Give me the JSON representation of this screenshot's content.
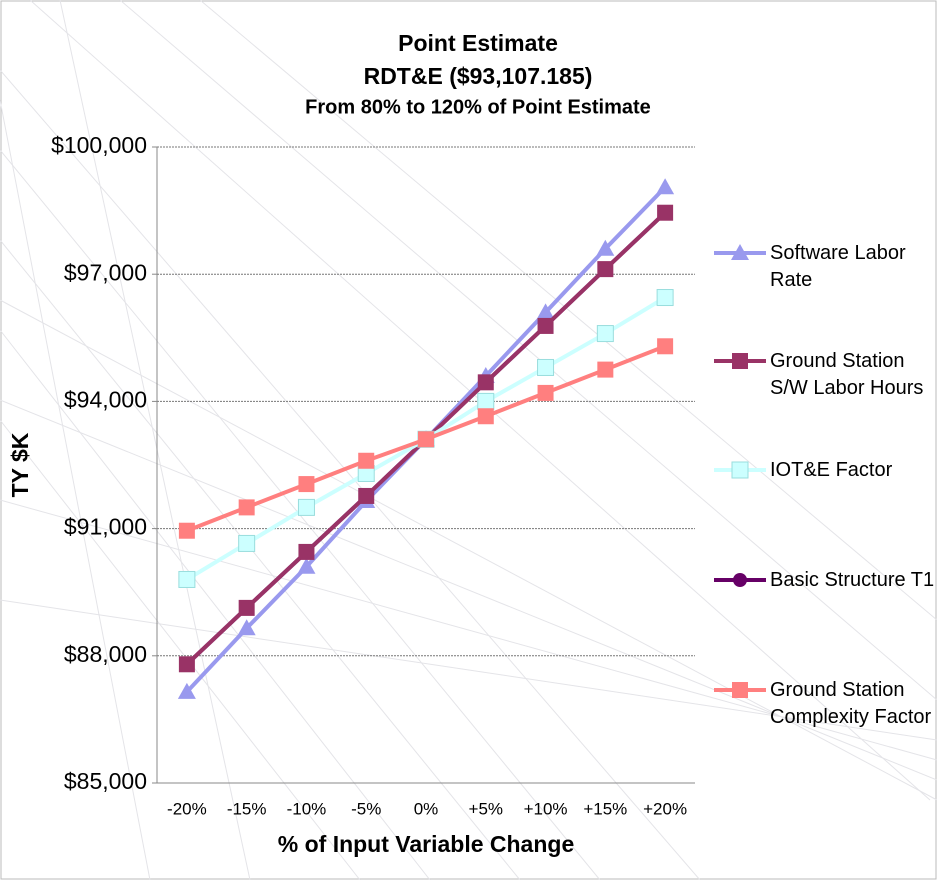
{
  "chart_data": {
    "type": "line",
    "title": "Point Estimate",
    "subtitle": "RDT&E ($93,107.185)",
    "subtitle2": "From 80% to 120% of Point Estimate",
    "y_label": "TY $K",
    "x_label": "% of Input Variable Change",
    "categories": [
      "-20%",
      "-15%",
      "-10%",
      "-5%",
      "0%",
      "+5%",
      "+10%",
      "+15%",
      "+20%"
    ],
    "ylim": [
      85000,
      100000
    ],
    "yticks": [
      {
        "value": 85000,
        "label": "$85,000"
      },
      {
        "value": 88000,
        "label": "$88,000"
      },
      {
        "value": 91000,
        "label": "$91,000"
      },
      {
        "value": 94000,
        "label": "$94,000"
      },
      {
        "value": 97000,
        "label": "$97,000"
      },
      {
        "value": 100000,
        "label": "$100,000"
      }
    ],
    "grid": true,
    "legend": "right",
    "series": [
      {
        "name": "Software Labor Rate",
        "color": "#9999ee",
        "marker": "triangle",
        "values": [
          87150,
          88650,
          90100,
          91650,
          93107,
          94600,
          96100,
          97600,
          99050
        ]
      },
      {
        "name": "Ground Station S/W Labor Hours",
        "color": "#993366",
        "marker": "square",
        "values": [
          87800,
          89130,
          90450,
          91770,
          93107,
          94450,
          95780,
          97120,
          98450
        ]
      },
      {
        "name": "IOT&E Factor",
        "color": "#ccffff",
        "marker": "square",
        "values": [
          89800,
          90650,
          91500,
          92300,
          93107,
          94000,
          94800,
          95600,
          96450
        ]
      },
      {
        "name": "Basic Structure T1",
        "color": "#660066",
        "marker": "circle",
        "values": [
          87800,
          89130,
          90450,
          91770,
          93107,
          94450,
          95780,
          97120,
          98450
        ]
      },
      {
        "name": "Ground Station Complexity Factor",
        "color": "#ff7f7f",
        "marker": "square",
        "values": [
          90950,
          91500,
          92050,
          92600,
          93107,
          93650,
          94200,
          94750,
          95300
        ]
      }
    ]
  }
}
